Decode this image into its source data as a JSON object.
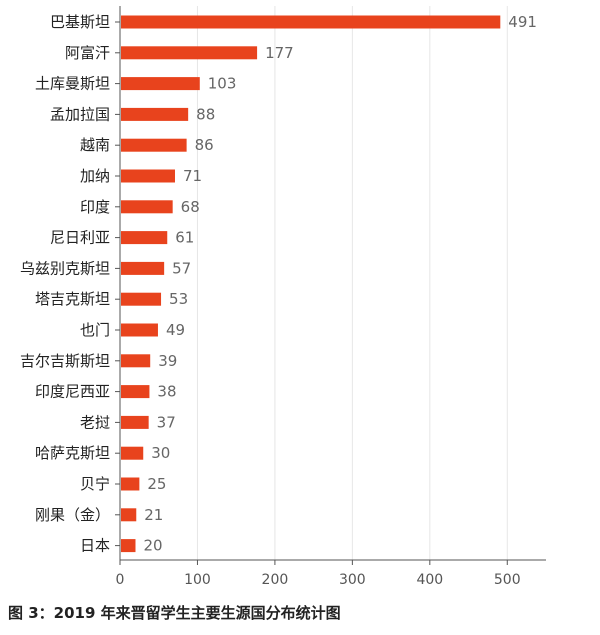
{
  "caption": "图 3：2019 年来晋留学生主要生源国分布统计图",
  "colors": {
    "bar": "#e8431d",
    "grid": "#e6e6e6",
    "axis": "#555555"
  },
  "chart_data": {
    "type": "bar",
    "orientation": "horizontal",
    "categories": [
      "巴基斯坦",
      "阿富汗",
      "土库曼斯坦",
      "孟加拉国",
      "越南",
      "加纳",
      "印度",
      "尼日利亚",
      "乌兹别克斯坦",
      "塔吉克斯坦",
      "也门",
      "吉尔吉斯斯坦",
      "印度尼西亚",
      "老挝",
      "哈萨克斯坦",
      "贝宁",
      "刚果（金）",
      "日本"
    ],
    "values": [
      491,
      177,
      103,
      88,
      86,
      71,
      68,
      61,
      57,
      53,
      49,
      39,
      38,
      37,
      30,
      25,
      21,
      20
    ],
    "xticks": [
      0,
      100,
      200,
      300,
      400,
      500
    ],
    "xlim": [
      0,
      550
    ],
    "grid": true
  }
}
